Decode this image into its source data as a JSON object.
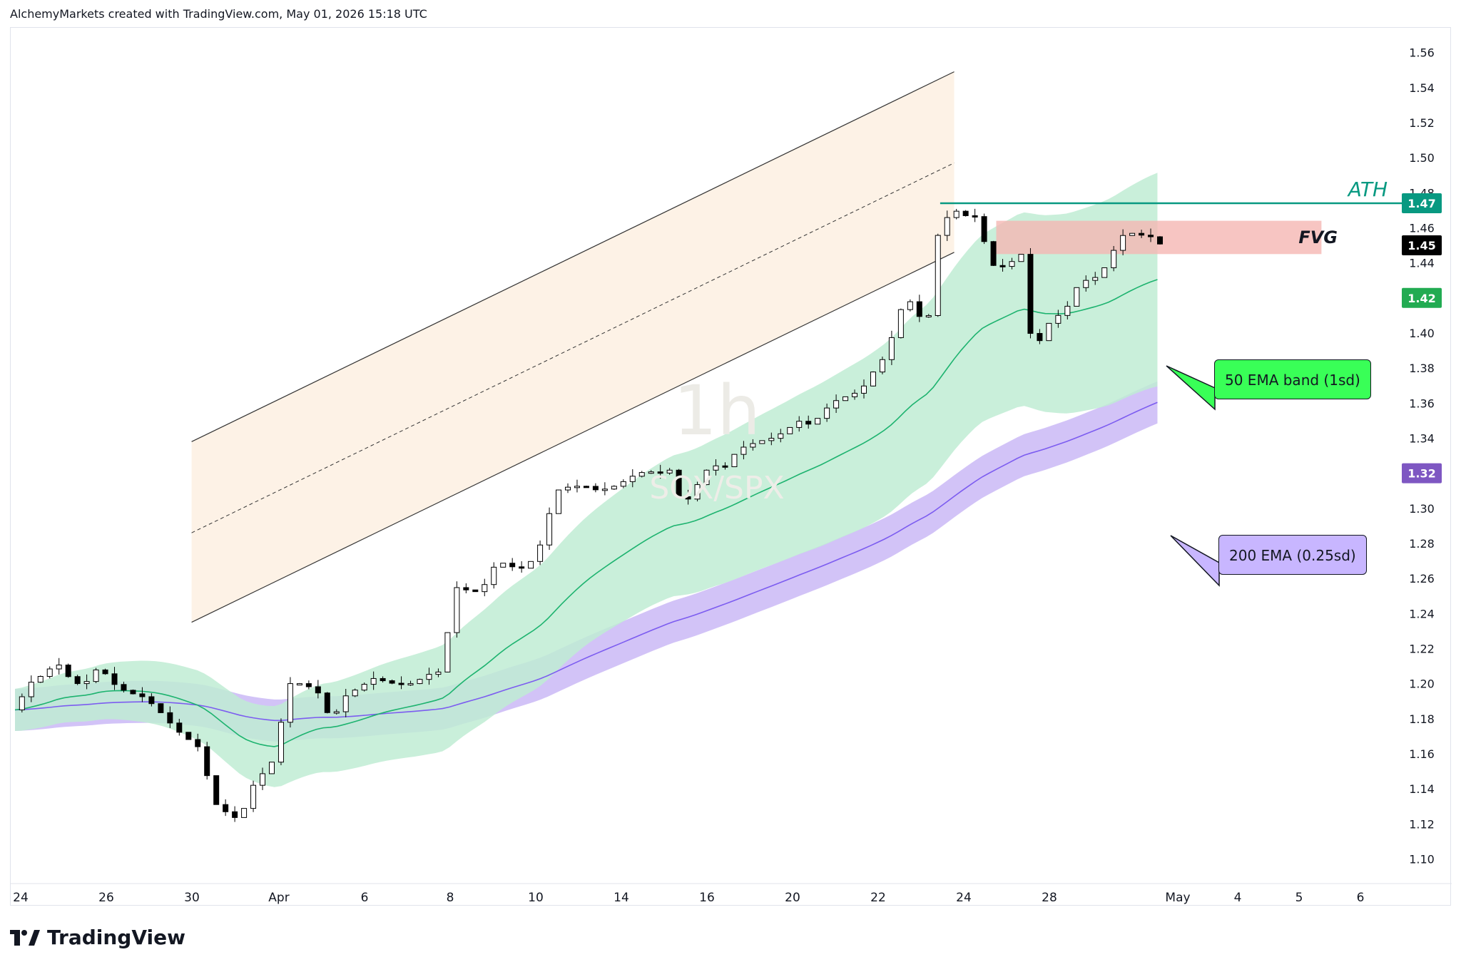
{
  "header": {
    "attribution": "AlchemyMarkets created with TradingView.com, May 01, 2026 15:18 UTC"
  },
  "footer": {
    "brand": "TradingView"
  },
  "watermark": {
    "interval": "1h",
    "symbol": "SOX/SPX"
  },
  "annotations": {
    "ath": "ATH",
    "fvg": "FVG",
    "ema50_label": "50 EMA band (1sd)",
    "ema200_label": "200 EMA (0.25sd)"
  },
  "price_badges": [
    {
      "value": "1.47",
      "color": "#089981"
    },
    {
      "value": "1.45",
      "color": "#000000"
    },
    {
      "value": "1.42",
      "color": "#22ab52"
    },
    {
      "value": "1.32",
      "color": "#7e57c2"
    }
  ],
  "colors": {
    "ema50_line": "#1db36f",
    "ema50_band": "#bfecd4",
    "ema200_line": "#7c5cf0",
    "ema200_band": "#cdbdf6",
    "channel_fill": "#fdf1e3",
    "fvg_fill": "#f5b7b3",
    "ath_line": "#089981",
    "ema50_box": "#39ff57",
    "ema200_box": "#c8b6ff"
  },
  "chart_data": {
    "type": "candlestick",
    "symbol": "SOX/SPX",
    "interval": "1h",
    "x_ticks": [
      "24",
      "26",
      "30",
      "Apr",
      "6",
      "8",
      "10",
      "14",
      "16",
      "20",
      "22",
      "24",
      "28",
      "May",
      "4",
      "5",
      "6"
    ],
    "y_ticks": [
      "1.10",
      "1.12",
      "1.14",
      "1.16",
      "1.18",
      "1.20",
      "1.22",
      "1.24",
      "1.26",
      "1.28",
      "1.30",
      "1.34",
      "1.36",
      "1.38",
      "1.40",
      "1.44",
      "1.46",
      "1.48",
      "1.50",
      "1.52",
      "1.54",
      "1.56"
    ],
    "ylim": [
      1.09,
      1.57
    ],
    "ath_level": 1.474,
    "fvg_zone": [
      1.445,
      1.464
    ],
    "last_price": 1.45,
    "ema50_last": 1.42,
    "ema200_last": 1.32,
    "channel": {
      "start_x": 6.3,
      "end_x": 21.0,
      "upper": [
        1.338,
        1.549
      ],
      "mid": [
        1.286,
        1.497
      ],
      "lower": [
        1.235,
        1.446
      ]
    },
    "price_path": [
      [
        0,
        1.185
      ],
      [
        0.5,
        1.2
      ],
      [
        1,
        1.205
      ],
      [
        1.5,
        1.212
      ],
      [
        2.1,
        1.2
      ],
      [
        2.5,
        1.2
      ],
      [
        3,
        1.21
      ],
      [
        3.5,
        1.2
      ],
      [
        4,
        1.195
      ],
      [
        4.5,
        1.193
      ],
      [
        5,
        1.187
      ],
      [
        5.5,
        1.178
      ],
      [
        6,
        1.17
      ],
      [
        6.5,
        1.165
      ],
      [
        7.2,
        1.13
      ],
      [
        8,
        1.122
      ],
      [
        8.5,
        1.142
      ],
      [
        9.3,
        1.158
      ],
      [
        9.7,
        1.2
      ],
      [
        10.3,
        1.2
      ],
      [
        10.8,
        1.195
      ],
      [
        11.3,
        1.178
      ],
      [
        11.7,
        1.192
      ],
      [
        12.2,
        1.197
      ],
      [
        12.8,
        1.203
      ],
      [
        13.5,
        1.2
      ],
      [
        14.2,
        1.2
      ],
      [
        14.7,
        1.205
      ],
      [
        15.2,
        1.207
      ],
      [
        15.7,
        1.255
      ],
      [
        16.2,
        1.253
      ],
      [
        16.6,
        1.252
      ],
      [
        17.2,
        1.27
      ],
      [
        18,
        1.265
      ],
      [
        18.6,
        1.272
      ],
      [
        19.3,
        1.31
      ],
      [
        19.7,
        1.312
      ],
      [
        20.3,
        1.313
      ],
      [
        20.8,
        1.31
      ],
      [
        21.3,
        1.312
      ],
      [
        21.8,
        1.316
      ],
      [
        22.2,
        1.32
      ],
      [
        22.6,
        1.321
      ],
      [
        23.0,
        1.32
      ],
      [
        23.4,
        1.322
      ],
      [
        23.8,
        1.3
      ],
      [
        24.2,
        1.31
      ],
      [
        24.8,
        1.325
      ],
      [
        25.3,
        1.323
      ],
      [
        25.6,
        1.33
      ],
      [
        26.0,
        1.335
      ],
      [
        26.5,
        1.338
      ],
      [
        27,
        1.34
      ],
      [
        27.5,
        1.344
      ],
      [
        27.9,
        1.35
      ],
      [
        28.3,
        1.348
      ],
      [
        28.7,
        1.352
      ],
      [
        29.1,
        1.36
      ],
      [
        29.5,
        1.363
      ],
      [
        29.9,
        1.365
      ],
      [
        30.3,
        1.37
      ],
      [
        30.7,
        1.38
      ],
      [
        31.1,
        1.388
      ],
      [
        31.5,
        1.41
      ],
      [
        31.8,
        1.42
      ],
      [
        32.1,
        1.415
      ],
      [
        32.3,
        1.408
      ],
      [
        32.6,
        1.41
      ],
      [
        32.9,
        1.455
      ],
      [
        33.2,
        1.465
      ],
      [
        33.5,
        1.47
      ],
      [
        33.8,
        1.468
      ],
      [
        34.1,
        1.465
      ],
      [
        34.4,
        1.468
      ],
      [
        34.7,
        1.44
      ],
      [
        35.1,
        1.437
      ],
      [
        35.5,
        1.44
      ],
      [
        35.9,
        1.445
      ],
      [
        36.2,
        1.4
      ],
      [
        36.6,
        1.395
      ],
      [
        37.0,
        1.41
      ],
      [
        37.4,
        1.41
      ],
      [
        37.8,
        1.425
      ],
      [
        38.2,
        1.43
      ],
      [
        38.6,
        1.432
      ],
      [
        39,
        1.44
      ],
      [
        39.4,
        1.455
      ],
      [
        39.8,
        1.457
      ],
      [
        40.1,
        1.456
      ],
      [
        40.5,
        1.455
      ],
      [
        40.9,
        1.45
      ]
    ]
  }
}
